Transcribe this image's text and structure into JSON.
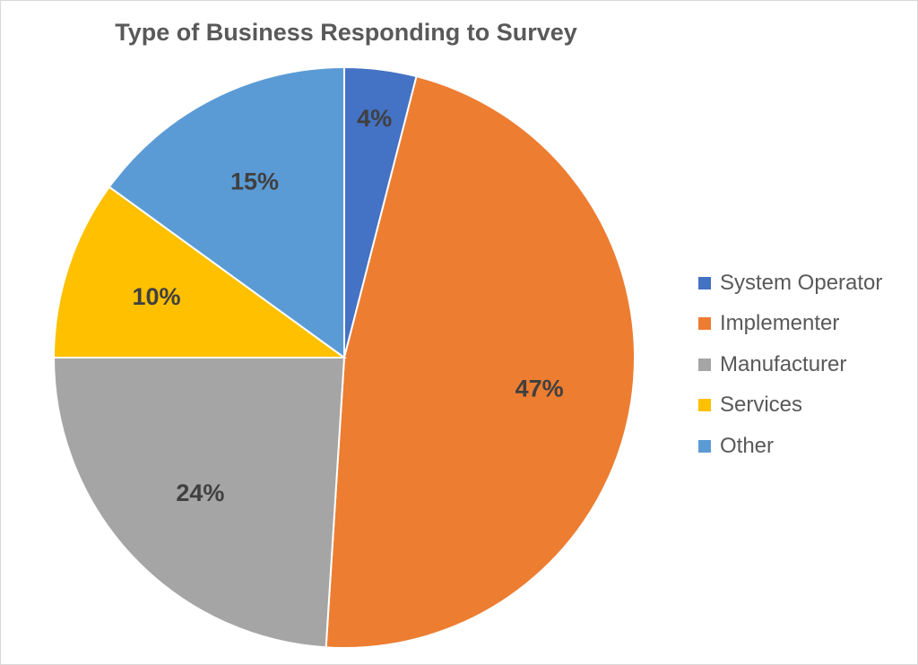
{
  "chart_data": {
    "type": "pie",
    "title": "Type of Business Responding to Survey",
    "categories": [
      "System Operator",
      "Implementer",
      "Manufacturer",
      "Services",
      "Other"
    ],
    "values": [
      4,
      47,
      24,
      10,
      15
    ],
    "labels": [
      "4%",
      "47%",
      "24%",
      "10%",
      "15%"
    ],
    "colors": [
      "#4472C4",
      "#ED7D31",
      "#A5A5A5",
      "#FFC000",
      "#5B9BD5"
    ],
    "legend_position": "right",
    "start": "top",
    "direction": "clockwise"
  }
}
